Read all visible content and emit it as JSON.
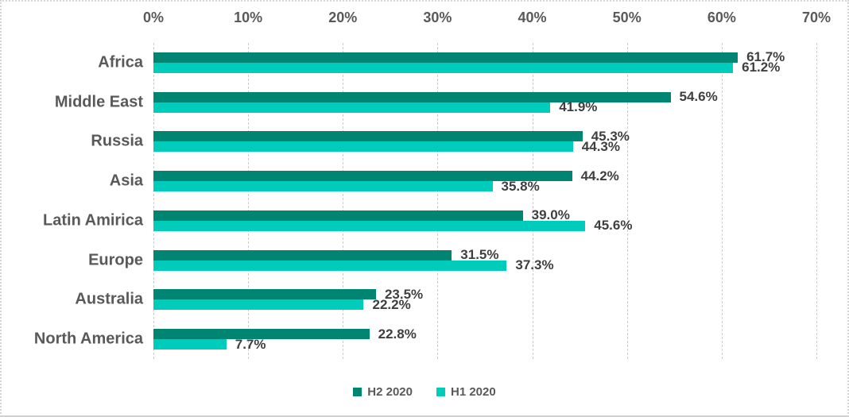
{
  "chart_data": {
    "type": "bar",
    "orientation": "horizontal",
    "title": "",
    "categories": [
      "Africa",
      "Middle East",
      "Russia",
      "Asia",
      "Latin Amirica",
      "Europe",
      "Australia",
      "North America"
    ],
    "series": [
      {
        "name": "H2 2020",
        "color": "#008572",
        "values": [
          61.7,
          54.6,
          45.3,
          44.2,
          39.0,
          31.5,
          23.5,
          22.8
        ],
        "labels": [
          "61.7%",
          "54.6%",
          "45.3%",
          "44.2%",
          "39.0%",
          "31.5%",
          "23.5%",
          "22.8%"
        ]
      },
      {
        "name": "H1 2020",
        "color": "#00ccbb",
        "values": [
          61.2,
          41.9,
          44.3,
          35.8,
          45.6,
          37.3,
          22.2,
          7.7
        ],
        "labels": [
          "61.2%",
          "41.9%",
          "44.3%",
          "35.8%",
          "45.6%",
          "37.3%",
          "22.2%",
          "7.7%"
        ]
      }
    ],
    "x_ticks": [
      "0%",
      "10%",
      "20%",
      "30%",
      "40%",
      "50%",
      "60%",
      "70%"
    ],
    "xlim": [
      0,
      70
    ],
    "grid": "vertical-dashed",
    "legend_position": "bottom-center",
    "axis_position": "top"
  },
  "colors": {
    "category_text": "#595959",
    "axis_text": "#595959",
    "data_label_text": "#3f3f3f",
    "gridline": "#cccccc",
    "frame_border": "#d6d6d6"
  }
}
